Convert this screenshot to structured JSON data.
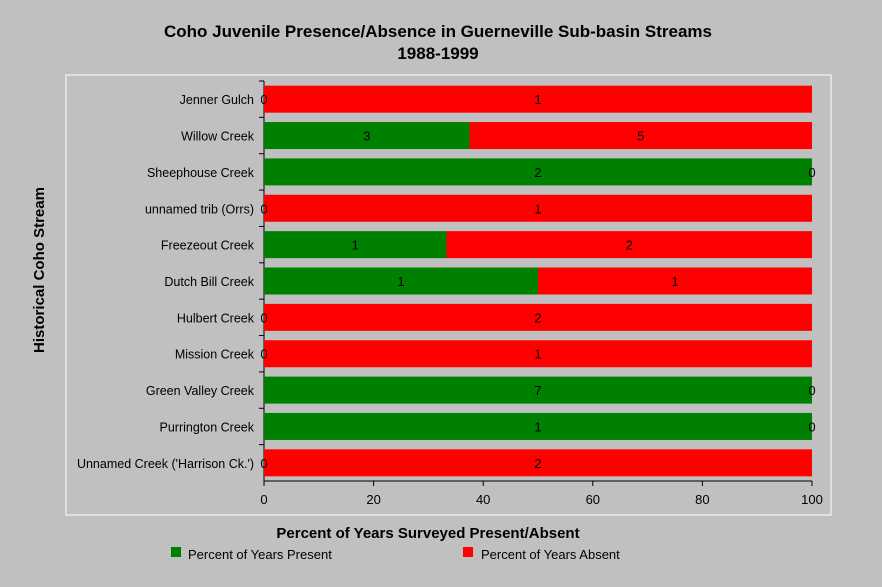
{
  "chart_data": {
    "type": "bar",
    "orientation": "horizontal",
    "stacked": true,
    "title": "Coho Juvenile Presence/Absence in Guerneville Sub-basin Streams",
    "subtitle": "1988-1999",
    "xlabel": "Percent of Years Surveyed Present/Absent",
    "ylabel": "Historical Coho Stream",
    "xlim": [
      0,
      100
    ],
    "xticks": [
      "0",
      "20",
      "40",
      "60",
      "80",
      "100"
    ],
    "grid": false,
    "legend_position": "bottom",
    "categories": [
      "Jenner Gulch",
      "Willow Creek",
      "Sheephouse Creek",
      "unnamed trib (Orrs)",
      "Freezeout Creek",
      "Dutch Bill Creek",
      "Hulbert Creek",
      "Mission Creek",
      "Green Valley Creek",
      "Purrington Creek",
      "Unnamed Creek ('Harrison Ck.')"
    ],
    "series": [
      {
        "name": "Percent of Years Present",
        "color": "#008000",
        "values": [
          0,
          37.5,
          100,
          0,
          33.3,
          50,
          0,
          0,
          100,
          100,
          0
        ],
        "labels": [
          "0",
          "3",
          "2",
          "0",
          "1",
          "1",
          "0",
          "0",
          "7",
          "1",
          "0"
        ]
      },
      {
        "name": "Percent of Years Absent",
        "color": "#ff0000",
        "values": [
          100,
          62.5,
          0,
          100,
          66.7,
          50,
          100,
          100,
          0,
          0,
          100
        ],
        "labels": [
          "1",
          "5",
          "0",
          "1",
          "2",
          "1",
          "2",
          "1",
          "0",
          "0",
          "2"
        ]
      }
    ]
  }
}
